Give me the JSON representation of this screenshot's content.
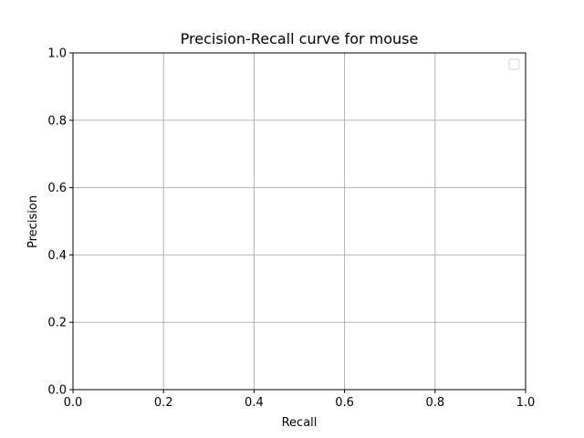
{
  "chart_data": {
    "type": "line",
    "title": "Precision-Recall curve for mouse",
    "xlabel": "Recall",
    "ylabel": "Precision",
    "xlim": [
      0.0,
      1.0
    ],
    "ylim": [
      0.0,
      1.0
    ],
    "xticks": [
      "0.0",
      "0.2",
      "0.4",
      "0.6",
      "0.8",
      "1.0"
    ],
    "yticks": [
      "0.0",
      "0.2",
      "0.4",
      "0.6",
      "0.8",
      "1.0"
    ],
    "grid": true,
    "legend": "top-right",
    "series": []
  },
  "colors": {
    "grid": "#b0b0b0",
    "axis": "#000000",
    "legend_border": "#cccccc"
  }
}
